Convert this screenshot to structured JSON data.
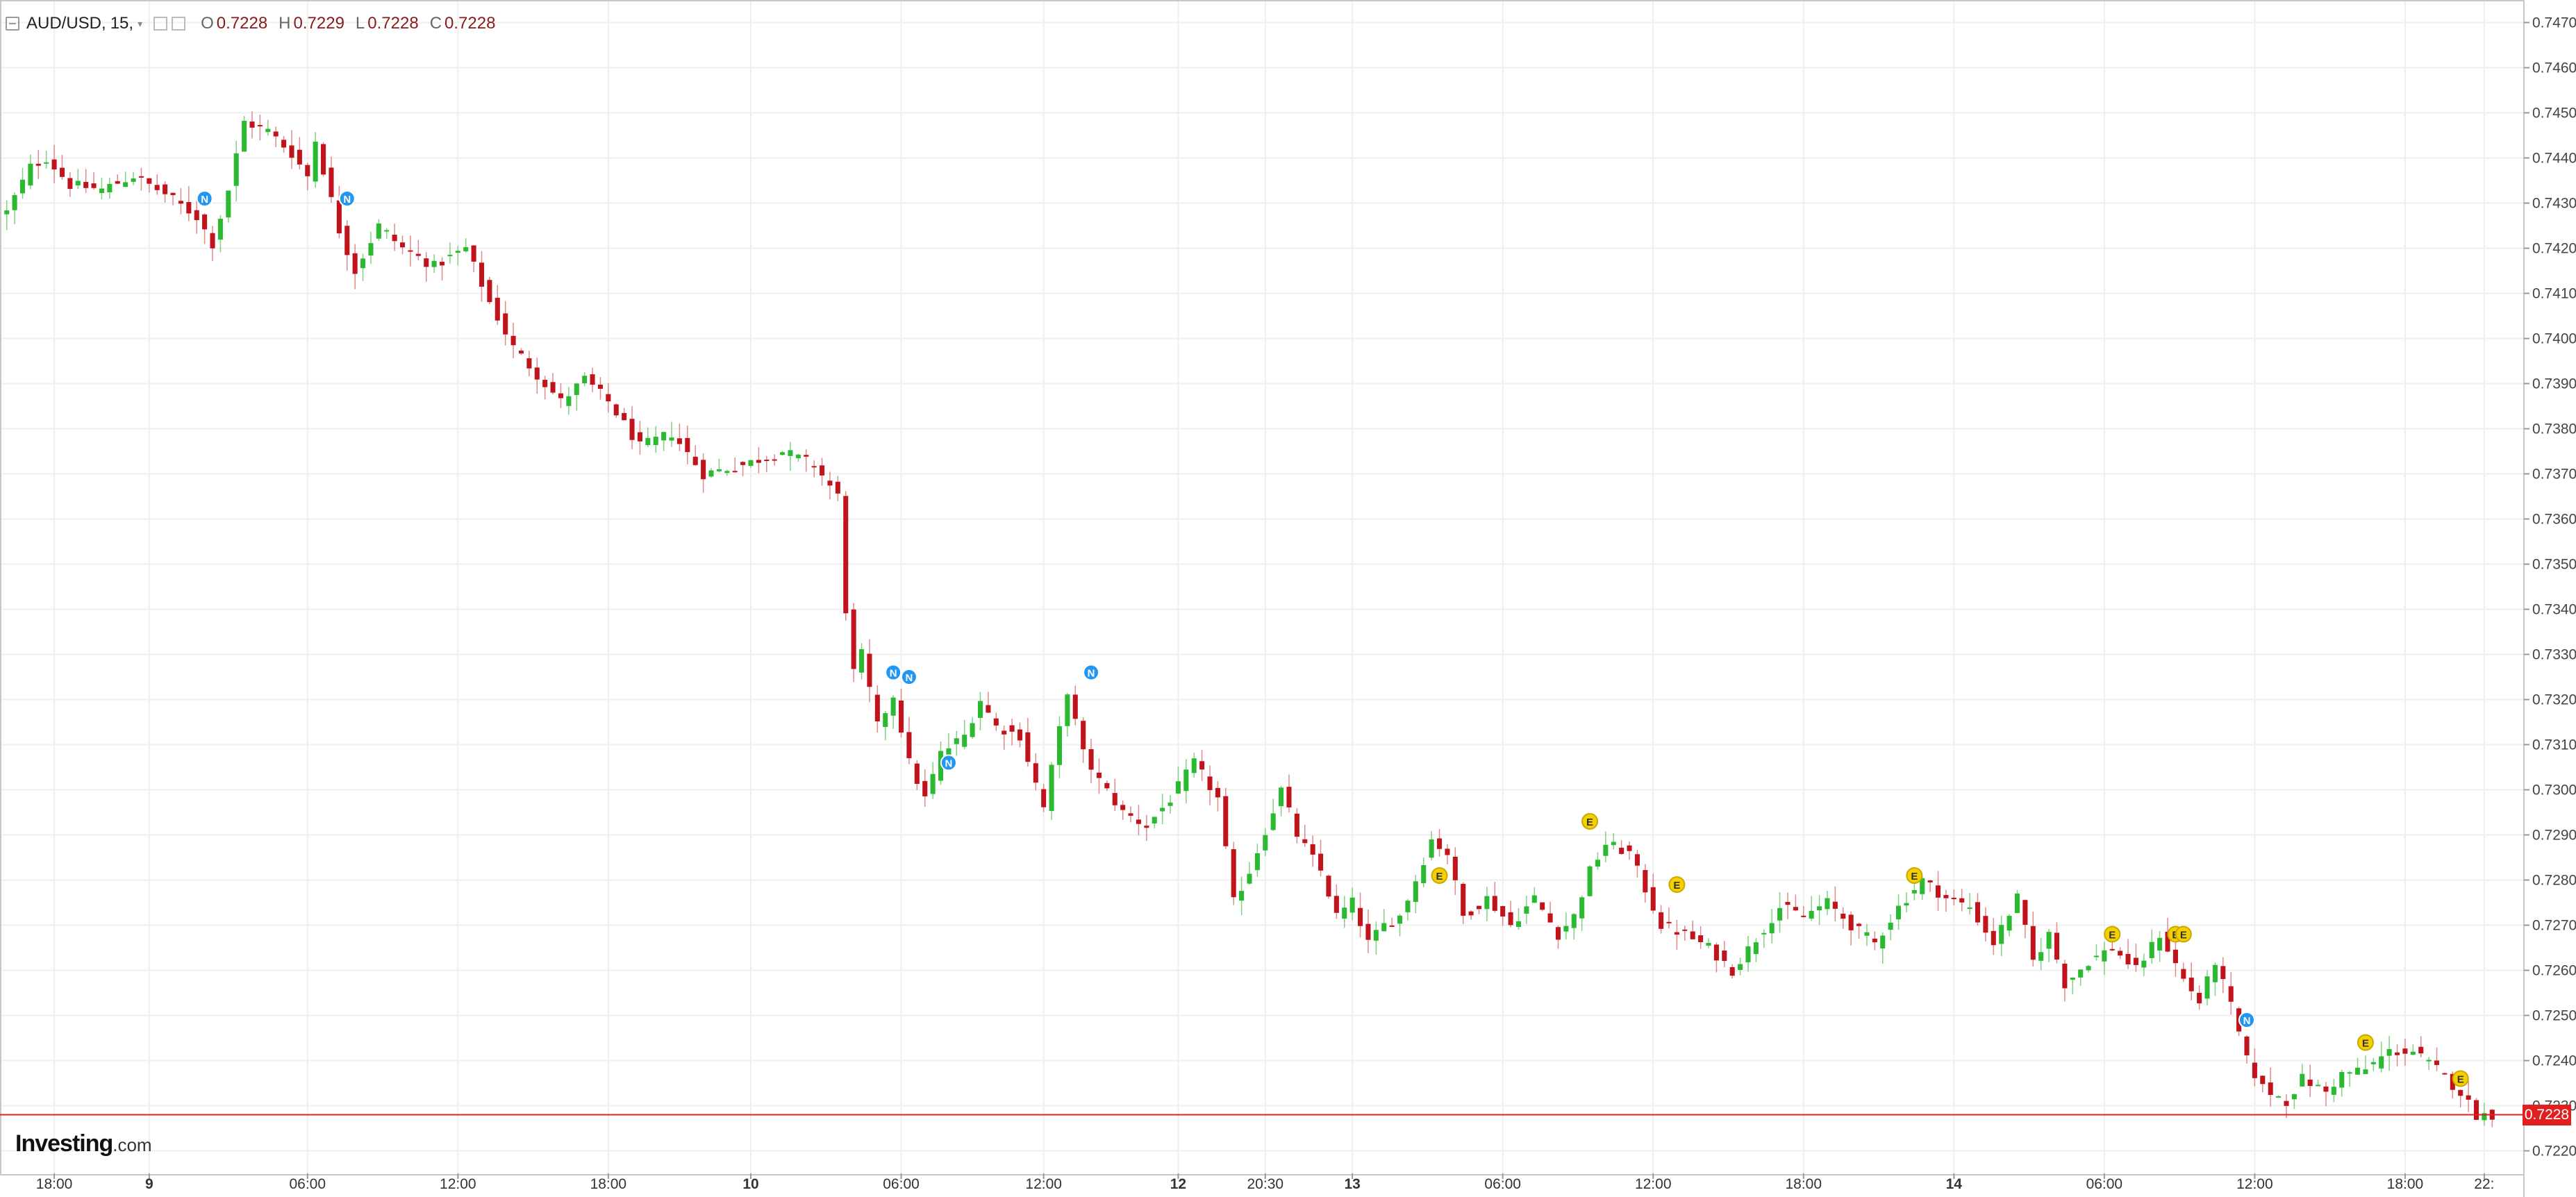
{
  "header": {
    "symbol": "AUD/USD,",
    "interval": "15,",
    "open_label": "O",
    "open": "0.7228",
    "high_label": "H",
    "high": "0.7229",
    "low_label": "L",
    "low": "0.7228",
    "close_label": "C",
    "close": "0.7228"
  },
  "logo": {
    "brand": "Investing",
    "suffix": ".com"
  },
  "last_price": "0.7228",
  "colors": {
    "up": "#2ab930",
    "down": "#c0131b",
    "price_line": "#e02020",
    "news_marker": "#2196f3",
    "event_marker": "#f5d000"
  },
  "chart_data": {
    "type": "candlestick",
    "title": "",
    "ylim": [
      0.7215,
      0.7475
    ],
    "y_ticks": [
      "0.7470",
      "0.7460",
      "0.7450",
      "0.7440",
      "0.7430",
      "0.7420",
      "0.7410",
      "0.7400",
      "0.7390",
      "0.7380",
      "0.7370",
      "0.7360",
      "0.7350",
      "0.7340",
      "0.7330",
      "0.7320",
      "0.7310",
      "0.7300",
      "0.7290",
      "0.7280",
      "0.7270",
      "0.7260",
      "0.7250",
      "0.7240",
      "0.7230",
      "0.7220"
    ],
    "x_ticks": [
      {
        "label": "18:00",
        "bold": false,
        "bar": 6
      },
      {
        "label": "9",
        "bold": true,
        "bar": 18
      },
      {
        "label": "06:00",
        "bold": false,
        "bar": 38
      },
      {
        "label": "12:00",
        "bold": false,
        "bar": 57
      },
      {
        "label": "18:00",
        "bold": false,
        "bar": 76
      },
      {
        "label": "10",
        "bold": true,
        "bar": 94
      },
      {
        "label": "06:00",
        "bold": false,
        "bar": 113
      },
      {
        "label": "12:00",
        "bold": false,
        "bar": 131
      },
      {
        "label": "12",
        "bold": true,
        "bar": 148
      },
      {
        "label": "20:30",
        "bold": false,
        "bar": 159
      },
      {
        "label": "13",
        "bold": true,
        "bar": 170
      },
      {
        "label": "06:00",
        "bold": false,
        "bar": 189
      },
      {
        "label": "12:00",
        "bold": false,
        "bar": 208
      },
      {
        "label": "18:00",
        "bold": false,
        "bar": 227
      },
      {
        "label": "14",
        "bold": true,
        "bar": 246
      },
      {
        "label": "06:00",
        "bold": false,
        "bar": 265
      },
      {
        "label": "12:00",
        "bold": false,
        "bar": 284
      },
      {
        "label": "18:00",
        "bold": false,
        "bar": 303
      },
      {
        "label": "22:",
        "bold": false,
        "bar": 313
      }
    ],
    "bar_count": 315,
    "anchors": [
      [
        0,
        0.7428
      ],
      [
        3,
        0.7438
      ],
      [
        5,
        0.744
      ],
      [
        8,
        0.7434
      ],
      [
        12,
        0.7433
      ],
      [
        16,
        0.7436
      ],
      [
        20,
        0.7432
      ],
      [
        24,
        0.7427
      ],
      [
        26,
        0.7421
      ],
      [
        28,
        0.7433
      ],
      [
        30,
        0.7448
      ],
      [
        33,
        0.7446
      ],
      [
        36,
        0.7441
      ],
      [
        38,
        0.7436
      ],
      [
        39,
        0.7444
      ],
      [
        42,
        0.7424
      ],
      [
        44,
        0.7415
      ],
      [
        47,
        0.7425
      ],
      [
        50,
        0.742
      ],
      [
        54,
        0.7416
      ],
      [
        58,
        0.742
      ],
      [
        61,
        0.7408
      ],
      [
        64,
        0.7398
      ],
      [
        67,
        0.7392
      ],
      [
        70,
        0.7386
      ],
      [
        73,
        0.7391
      ],
      [
        76,
        0.7386
      ],
      [
        80,
        0.7376
      ],
      [
        84,
        0.7379
      ],
      [
        88,
        0.737
      ],
      [
        93,
        0.7372
      ],
      [
        98,
        0.7375
      ],
      [
        102,
        0.7372
      ],
      [
        105,
        0.7365
      ],
      [
        106,
        0.734
      ],
      [
        107,
        0.7326
      ],
      [
        108,
        0.733
      ],
      [
        110,
        0.7314
      ],
      [
        112,
        0.7321
      ],
      [
        114,
        0.7306
      ],
      [
        116,
        0.7298
      ],
      [
        118,
        0.7308
      ],
      [
        121,
        0.7312
      ],
      [
        123,
        0.732
      ],
      [
        125,
        0.7314
      ],
      [
        128,
        0.7312
      ],
      [
        131,
        0.7296
      ],
      [
        134,
        0.7322
      ],
      [
        136,
        0.7308
      ],
      [
        138,
        0.7302
      ],
      [
        141,
        0.7295
      ],
      [
        144,
        0.7292
      ],
      [
        147,
        0.7298
      ],
      [
        150,
        0.7306
      ],
      [
        153,
        0.7298
      ],
      [
        155,
        0.7275
      ],
      [
        157,
        0.7282
      ],
      [
        159,
        0.7291
      ],
      [
        161,
        0.73
      ],
      [
        163,
        0.729
      ],
      [
        166,
        0.7282
      ],
      [
        168,
        0.7272
      ],
      [
        170,
        0.7275
      ],
      [
        172,
        0.7266
      ],
      [
        174,
        0.727
      ],
      [
        176,
        0.7272
      ],
      [
        178,
        0.728
      ],
      [
        180,
        0.7289
      ],
      [
        182,
        0.7286
      ],
      [
        184,
        0.7272
      ],
      [
        187,
        0.7276
      ],
      [
        190,
        0.727
      ],
      [
        193,
        0.7276
      ],
      [
        196,
        0.7268
      ],
      [
        198,
        0.7272
      ],
      [
        200,
        0.7282
      ],
      [
        202,
        0.7288
      ],
      [
        205,
        0.7286
      ],
      [
        207,
        0.7278
      ],
      [
        209,
        0.727
      ],
      [
        212,
        0.7268
      ],
      [
        215,
        0.7265
      ],
      [
        218,
        0.726
      ],
      [
        221,
        0.7267
      ],
      [
        224,
        0.7274
      ],
      [
        227,
        0.7272
      ],
      [
        230,
        0.7275
      ],
      [
        233,
        0.727
      ],
      [
        236,
        0.7266
      ],
      [
        239,
        0.7274
      ],
      [
        242,
        0.728
      ],
      [
        245,
        0.7276
      ],
      [
        248,
        0.7274
      ],
      [
        251,
        0.7266
      ],
      [
        254,
        0.7276
      ],
      [
        256,
        0.7262
      ],
      [
        258,
        0.7268
      ],
      [
        260,
        0.7257
      ],
      [
        263,
        0.7262
      ],
      [
        266,
        0.7265
      ],
      [
        269,
        0.726
      ],
      [
        272,
        0.7268
      ],
      [
        275,
        0.7258
      ],
      [
        277,
        0.7253
      ],
      [
        279,
        0.7262
      ],
      [
        281,
        0.7252
      ],
      [
        283,
        0.724
      ],
      [
        285,
        0.7234
      ],
      [
        288,
        0.7231
      ],
      [
        290,
        0.7236
      ],
      [
        293,
        0.7233
      ],
      [
        295,
        0.7237
      ],
      [
        298,
        0.7238
      ],
      [
        301,
        0.7242
      ],
      [
        304,
        0.7242
      ],
      [
        307,
        0.7238
      ],
      [
        310,
        0.7233
      ],
      [
        312,
        0.7228
      ],
      [
        314,
        0.7228
      ]
    ],
    "markers": [
      {
        "type": "N",
        "bar": 25,
        "price": 0.7431
      },
      {
        "type": "N",
        "bar": 43,
        "price": 0.7431
      },
      {
        "type": "N",
        "bar": 112,
        "price": 0.7326
      },
      {
        "type": "N",
        "bar": 114,
        "price": 0.7325
      },
      {
        "type": "N",
        "bar": 119,
        "price": 0.7306
      },
      {
        "type": "N",
        "bar": 137,
        "price": 0.7326
      },
      {
        "type": "E",
        "bar": 181,
        "price": 0.7281
      },
      {
        "type": "E",
        "bar": 200,
        "price": 0.7293
      },
      {
        "type": "E",
        "bar": 211,
        "price": 0.7279
      },
      {
        "type": "E",
        "bar": 241,
        "price": 0.7281
      },
      {
        "type": "E",
        "bar": 266,
        "price": 0.7268
      },
      {
        "type": "E",
        "bar": 274,
        "price": 0.7268
      },
      {
        "type": "E",
        "bar": 275,
        "price": 0.7268
      },
      {
        "type": "N",
        "bar": 283,
        "price": 0.7249
      },
      {
        "type": "E",
        "bar": 298,
        "price": 0.7244
      },
      {
        "type": "E",
        "bar": 310,
        "price": 0.7236
      }
    ],
    "grid": true,
    "last_price": 0.7228
  }
}
